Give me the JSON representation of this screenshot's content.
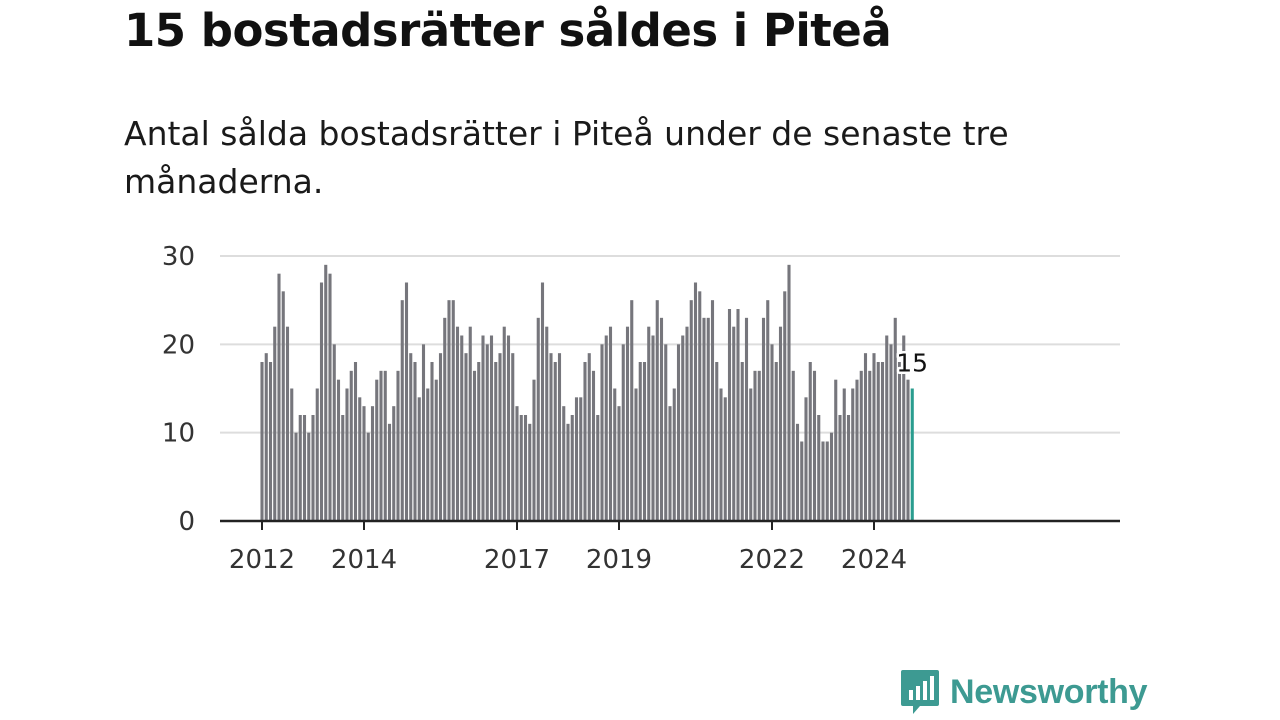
{
  "title": "15 bostadsrätter såldes i Piteå",
  "subtitle": "Antal sålda bostadsrätter i Piteå under de senaste tre månaderna.",
  "brand": "Newsworthy",
  "colors": {
    "bar": "#76767c",
    "highlight": "#2a9d8f",
    "grid": "#dddddd",
    "axis": "#222222",
    "brand": "#3d9a92"
  },
  "chart_data": {
    "type": "bar",
    "title": "15 bostadsrätter såldes i Piteå",
    "subtitle": "Antal sålda bostadsrätter i Piteå under de senaste tre månaderna.",
    "xlabel": "",
    "ylabel": "",
    "ylim": [
      0,
      30
    ],
    "yticks": [
      0,
      10,
      20,
      30
    ],
    "xticks": [
      {
        "label": "2012",
        "index": 0
      },
      {
        "label": "2014",
        "index": 24
      },
      {
        "label": "2017",
        "index": 60
      },
      {
        "label": "2019",
        "index": 84
      },
      {
        "label": "2022",
        "index": 120
      },
      {
        "label": "2024",
        "index": 144
      }
    ],
    "grid": true,
    "last_value_label": "15",
    "highlight_last": true,
    "values": [
      18,
      19,
      18,
      22,
      28,
      26,
      22,
      15,
      10,
      12,
      12,
      10,
      12,
      15,
      27,
      29,
      28,
      20,
      16,
      12,
      15,
      17,
      18,
      14,
      13,
      10,
      13,
      16,
      17,
      17,
      11,
      13,
      17,
      25,
      27,
      19,
      18,
      14,
      20,
      15,
      18,
      16,
      19,
      23,
      25,
      25,
      22,
      21,
      19,
      22,
      17,
      18,
      21,
      20,
      21,
      18,
      19,
      22,
      21,
      19,
      13,
      12,
      12,
      11,
      16,
      23,
      27,
      22,
      19,
      18,
      19,
      13,
      11,
      12,
      14,
      14,
      18,
      19,
      17,
      12,
      20,
      21,
      22,
      15,
      13,
      20,
      22,
      25,
      15,
      18,
      18,
      22,
      21,
      25,
      23,
      20,
      13,
      15,
      20,
      21,
      22,
      25,
      27,
      26,
      23,
      23,
      25,
      18,
      15,
      14,
      24,
      22,
      24,
      18,
      23,
      15,
      17,
      17,
      23,
      25,
      20,
      18,
      22,
      26,
      29,
      17,
      11,
      9,
      14,
      18,
      17,
      12,
      9,
      9,
      10,
      16,
      12,
      15,
      12,
      15,
      16,
      17,
      19,
      17,
      19,
      18,
      18,
      21,
      20,
      23,
      18,
      21,
      16,
      15
    ]
  }
}
